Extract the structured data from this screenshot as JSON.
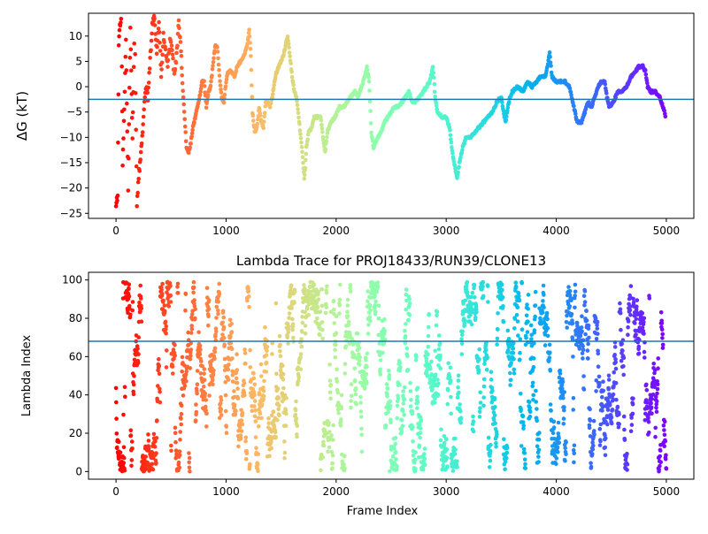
{
  "chart_data": [
    {
      "type": "scatter",
      "title": "",
      "xlabel": "",
      "ylabel": "ΔG (kT)",
      "xlim": [
        -250,
        5250
      ],
      "ylim": [
        -26,
        14.5
      ],
      "xticks": [
        0,
        1000,
        2000,
        3000,
        4000,
        5000
      ],
      "yticks": [
        -25,
        -20,
        -15,
        -10,
        -5,
        0,
        5,
        10
      ],
      "grid": false,
      "hline": -2.5,
      "color_map": "rainbow (red at frame 0 to violet at frame 5000)",
      "trace": [
        [
          0,
          -24
        ],
        [
          15,
          -21
        ],
        [
          25,
          8
        ],
        [
          35,
          12
        ],
        [
          50,
          14
        ],
        [
          60,
          -15
        ],
        [
          75,
          -5
        ],
        [
          90,
          9
        ],
        [
          110,
          -20
        ],
        [
          130,
          12
        ],
        [
          150,
          -10
        ],
        [
          170,
          14
        ],
        [
          190,
          -23
        ],
        [
          210,
          -17
        ],
        [
          230,
          -12
        ],
        [
          250,
          -6
        ],
        [
          270,
          0
        ],
        [
          290,
          -2
        ],
        [
          310,
          5
        ],
        [
          330,
          12
        ],
        [
          350,
          14
        ],
        [
          370,
          6
        ],
        [
          390,
          13
        ],
        [
          410,
          2
        ],
        [
          430,
          10
        ],
        [
          450,
          7
        ],
        [
          470,
          4
        ],
        [
          490,
          9
        ],
        [
          510,
          7
        ],
        [
          530,
          2
        ],
        [
          550,
          6
        ],
        [
          570,
          13
        ],
        [
          590,
          7
        ],
        [
          600,
          2
        ],
        [
          620,
          -5
        ],
        [
          640,
          -12
        ],
        [
          660,
          -13
        ],
        [
          680,
          -11
        ],
        [
          700,
          -8
        ],
        [
          730,
          -5
        ],
        [
          760,
          -2
        ],
        [
          780,
          1
        ],
        [
          800,
          1
        ],
        [
          820,
          -4
        ],
        [
          840,
          -1
        ],
        [
          860,
          0
        ],
        [
          880,
          4
        ],
        [
          900,
          8
        ],
        [
          920,
          8
        ],
        [
          940,
          2
        ],
        [
          960,
          -2
        ],
        [
          980,
          -3
        ],
        [
          1000,
          1
        ],
        [
          1020,
          3
        ],
        [
          1050,
          3
        ],
        [
          1080,
          2
        ],
        [
          1100,
          4
        ],
        [
          1130,
          5
        ],
        [
          1160,
          6
        ],
        [
          1190,
          8
        ],
        [
          1210,
          11
        ],
        [
          1225,
          6
        ],
        [
          1240,
          -5
        ],
        [
          1260,
          -9
        ],
        [
          1280,
          -8
        ],
        [
          1300,
          -4
        ],
        [
          1320,
          -7
        ],
        [
          1340,
          -8
        ],
        [
          1360,
          -3
        ],
        [
          1380,
          -3
        ],
        [
          1400,
          -4
        ],
        [
          1420,
          -2
        ],
        [
          1440,
          1
        ],
        [
          1460,
          3
        ],
        [
          1480,
          4
        ],
        [
          1500,
          5
        ],
        [
          1520,
          6
        ],
        [
          1540,
          8
        ],
        [
          1560,
          10
        ],
        [
          1580,
          6
        ],
        [
          1600,
          2
        ],
        [
          1620,
          -1
        ],
        [
          1640,
          -2
        ],
        [
          1660,
          -6
        ],
        [
          1680,
          -10
        ],
        [
          1700,
          -15
        ],
        [
          1710,
          -18
        ],
        [
          1720,
          -16
        ],
        [
          1730,
          -12
        ],
        [
          1750,
          -9
        ],
        [
          1780,
          -8
        ],
        [
          1800,
          -6
        ],
        [
          1830,
          -6
        ],
        [
          1860,
          -6
        ],
        [
          1880,
          -10
        ],
        [
          1900,
          -13
        ],
        [
          1920,
          -9
        ],
        [
          1950,
          -7
        ],
        [
          1990,
          -6
        ],
        [
          2030,
          -4
        ],
        [
          2070,
          -4
        ],
        [
          2100,
          -3
        ],
        [
          2130,
          -2
        ],
        [
          2170,
          -1
        ],
        [
          2200,
          -2
        ],
        [
          2230,
          0
        ],
        [
          2260,
          2
        ],
        [
          2280,
          4
        ],
        [
          2300,
          1
        ],
        [
          2320,
          -9
        ],
        [
          2340,
          -12
        ],
        [
          2360,
          -11
        ],
        [
          2380,
          -10
        ],
        [
          2410,
          -9
        ],
        [
          2440,
          -7
        ],
        [
          2470,
          -6
        ],
        [
          2500,
          -5
        ],
        [
          2530,
          -4
        ],
        [
          2560,
          -4
        ],
        [
          2600,
          -3
        ],
        [
          2630,
          -2
        ],
        [
          2660,
          -1
        ],
        [
          2690,
          -3
        ],
        [
          2720,
          -3
        ],
        [
          2760,
          -2
        ],
        [
          2790,
          -1
        ],
        [
          2820,
          0
        ],
        [
          2850,
          1
        ],
        [
          2870,
          3
        ],
        [
          2880,
          4
        ],
        [
          2900,
          -2
        ],
        [
          2920,
          -5
        ],
        [
          2960,
          -6
        ],
        [
          3000,
          -6
        ],
        [
          3030,
          -8
        ],
        [
          3050,
          -12
        ],
        [
          3070,
          -15
        ],
        [
          3090,
          -17
        ],
        [
          3100,
          -18
        ],
        [
          3120,
          -15
        ],
        [
          3150,
          -12
        ],
        [
          3180,
          -10
        ],
        [
          3220,
          -10
        ],
        [
          3260,
          -9
        ],
        [
          3300,
          -8
        ],
        [
          3340,
          -7
        ],
        [
          3380,
          -6
        ],
        [
          3420,
          -5
        ],
        [
          3460,
          -3
        ],
        [
          3500,
          -2
        ],
        [
          3520,
          -5
        ],
        [
          3540,
          -7
        ],
        [
          3560,
          -4
        ],
        [
          3580,
          -2
        ],
        [
          3600,
          -1
        ],
        [
          3650,
          0
        ],
        [
          3700,
          -1
        ],
        [
          3740,
          1
        ],
        [
          3780,
          0
        ],
        [
          3820,
          1
        ],
        [
          3860,
          2
        ],
        [
          3900,
          2
        ],
        [
          3920,
          4
        ],
        [
          3940,
          7
        ],
        [
          3960,
          2
        ],
        [
          4000,
          1
        ],
        [
          4040,
          1
        ],
        [
          4080,
          1
        ],
        [
          4120,
          0
        ],
        [
          4160,
          -4
        ],
        [
          4190,
          -7
        ],
        [
          4230,
          -7
        ],
        [
          4260,
          -5
        ],
        [
          4290,
          -3
        ],
        [
          4320,
          -4
        ],
        [
          4350,
          -2
        ],
        [
          4380,
          0
        ],
        [
          4410,
          1
        ],
        [
          4440,
          1
        ],
        [
          4460,
          -2
        ],
        [
          4480,
          -4
        ],
        [
          4520,
          -3
        ],
        [
          4560,
          -1
        ],
        [
          4600,
          -1
        ],
        [
          4640,
          0
        ],
        [
          4680,
          2
        ],
        [
          4720,
          3
        ],
        [
          4750,
          4
        ],
        [
          4790,
          4
        ],
        [
          4810,
          3
        ],
        [
          4830,
          0
        ],
        [
          4860,
          -1
        ],
        [
          4900,
          -1
        ],
        [
          4940,
          -2
        ],
        [
          4970,
          -4
        ],
        [
          4995,
          -6
        ]
      ]
    },
    {
      "type": "scatter",
      "title": "Lambda Trace for PROJ18433/RUN39/CLONE13",
      "xlabel": "Frame Index",
      "ylabel": "Lambda Index",
      "xlim": [
        -250,
        5250
      ],
      "ylim": [
        -4,
        104
      ],
      "xticks": [
        0,
        1000,
        2000,
        3000,
        4000,
        5000
      ],
      "yticks": [
        0,
        20,
        40,
        60,
        80,
        100
      ],
      "grid": false,
      "hline": 68,
      "x_range": [
        0,
        5000
      ],
      "y_range": [
        0,
        99
      ],
      "color_map": "rainbow (red at frame 0 to violet at frame 5000)"
    }
  ]
}
